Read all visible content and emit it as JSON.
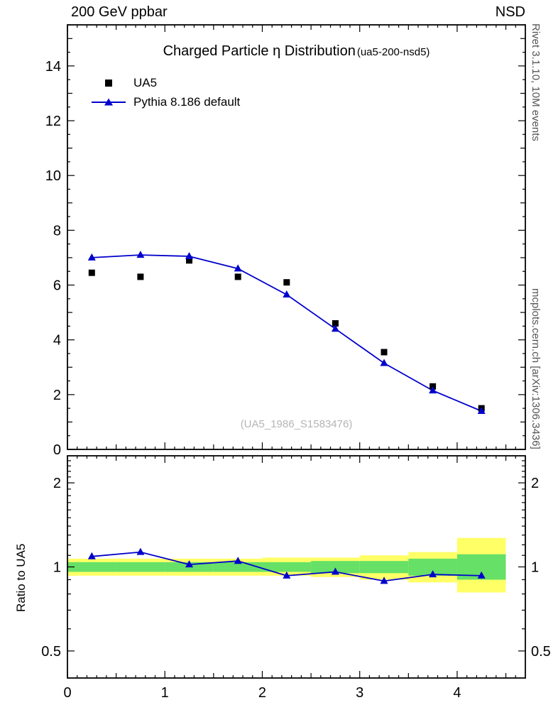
{
  "header": {
    "left": "200 GeV ppbar",
    "right": "NSD"
  },
  "side_notes": {
    "top": "Rivet 3.1.10,  10M events",
    "bottom": "mcplots.cern.ch [arXiv:1306.3436]"
  },
  "watermark": "(UA5_1986_S1583476)",
  "legend": {
    "items": [
      {
        "label": "UA5",
        "marker": "square",
        "color": "#000000"
      },
      {
        "label": "Pythia 8.186 default",
        "marker": "triangle-line",
        "color": "#0000cc"
      }
    ]
  },
  "chart_data": {
    "type": "line",
    "title": "Charged Particle η Distribution",
    "title_suffix": "(ua5-200-nsd5)",
    "x_label_ticks": [
      0,
      1,
      2,
      3,
      4
    ],
    "x": [
      0.25,
      0.75,
      1.25,
      1.75,
      2.25,
      2.75,
      3.25,
      3.75,
      4.25
    ],
    "series": [
      {
        "name": "UA5",
        "marker": "square",
        "color": "#000000",
        "values": [
          6.45,
          6.3,
          6.9,
          6.3,
          6.1,
          4.6,
          3.55,
          2.3,
          1.5
        ]
      },
      {
        "name": "Pythia 8.186 default",
        "marker": "triangle",
        "color": "#0000cc",
        "values": [
          7.0,
          7.1,
          7.05,
          6.6,
          5.65,
          4.4,
          3.15,
          2.15,
          1.4
        ]
      }
    ],
    "main_panel": {
      "xlim": [
        0,
        4.7
      ],
      "ylim": [
        0,
        15.5
      ],
      "y_ticks": [
        0,
        2,
        4,
        6,
        8,
        10,
        12,
        14
      ]
    },
    "ratio_panel": {
      "ylabel": "Ratio to UA5",
      "scale": "log",
      "ylim": [
        0.4,
        2.5
      ],
      "y_ticks": [
        0.5,
        1,
        2
      ],
      "ratio_values": [
        1.09,
        1.13,
        1.02,
        1.05,
        0.93,
        0.96,
        0.89,
        0.94,
        0.93
      ],
      "band_edges": [
        0,
        0.5,
        1,
        1.5,
        2,
        2.5,
        3,
        3.5,
        4,
        4.5
      ],
      "band_yellow_lo": [
        0.93,
        0.93,
        0.93,
        0.93,
        0.93,
        0.92,
        0.9,
        0.88,
        0.81
      ],
      "band_yellow_hi": [
        1.07,
        1.07,
        1.07,
        1.07,
        1.08,
        1.08,
        1.1,
        1.13,
        1.27
      ],
      "band_green_lo": [
        0.96,
        0.96,
        0.96,
        0.96,
        0.96,
        0.95,
        0.95,
        0.93,
        0.9
      ],
      "band_green_hi": [
        1.04,
        1.04,
        1.04,
        1.04,
        1.04,
        1.05,
        1.05,
        1.07,
        1.11
      ],
      "band_yellow_color": "#ffff66",
      "band_green_color": "#66e066"
    }
  }
}
